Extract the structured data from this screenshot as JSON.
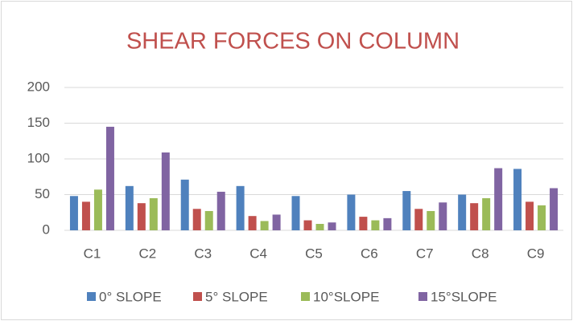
{
  "chart_data": {
    "type": "bar",
    "title": "SHEAR FORCES ON COLUMN",
    "categories": [
      "C1",
      "C2",
      "C3",
      "C4",
      "C5",
      "C6",
      "C7",
      "C8",
      "C9"
    ],
    "series": [
      {
        "name": "0° SLOPE",
        "color": "#4f81bd",
        "values": [
          48,
          62,
          71,
          62,
          48,
          50,
          55,
          50,
          86
        ]
      },
      {
        "name": "5° SLOPE",
        "color": "#c0504d",
        "values": [
          40,
          38,
          30,
          20,
          14,
          19,
          30,
          38,
          40
        ]
      },
      {
        "name": "10°SLOPE",
        "color": "#9bbb59",
        "values": [
          57,
          45,
          27,
          13,
          9,
          14,
          27,
          45,
          35
        ]
      },
      {
        "name": "15°SLOPE",
        "color": "#8064a2",
        "values": [
          145,
          109,
          54,
          22,
          11,
          17,
          39,
          87,
          59
        ]
      }
    ],
    "ylim": [
      0,
      200
    ],
    "yticks": [
      0,
      50,
      100,
      150,
      200
    ],
    "grid": true,
    "legend": "bottom"
  }
}
